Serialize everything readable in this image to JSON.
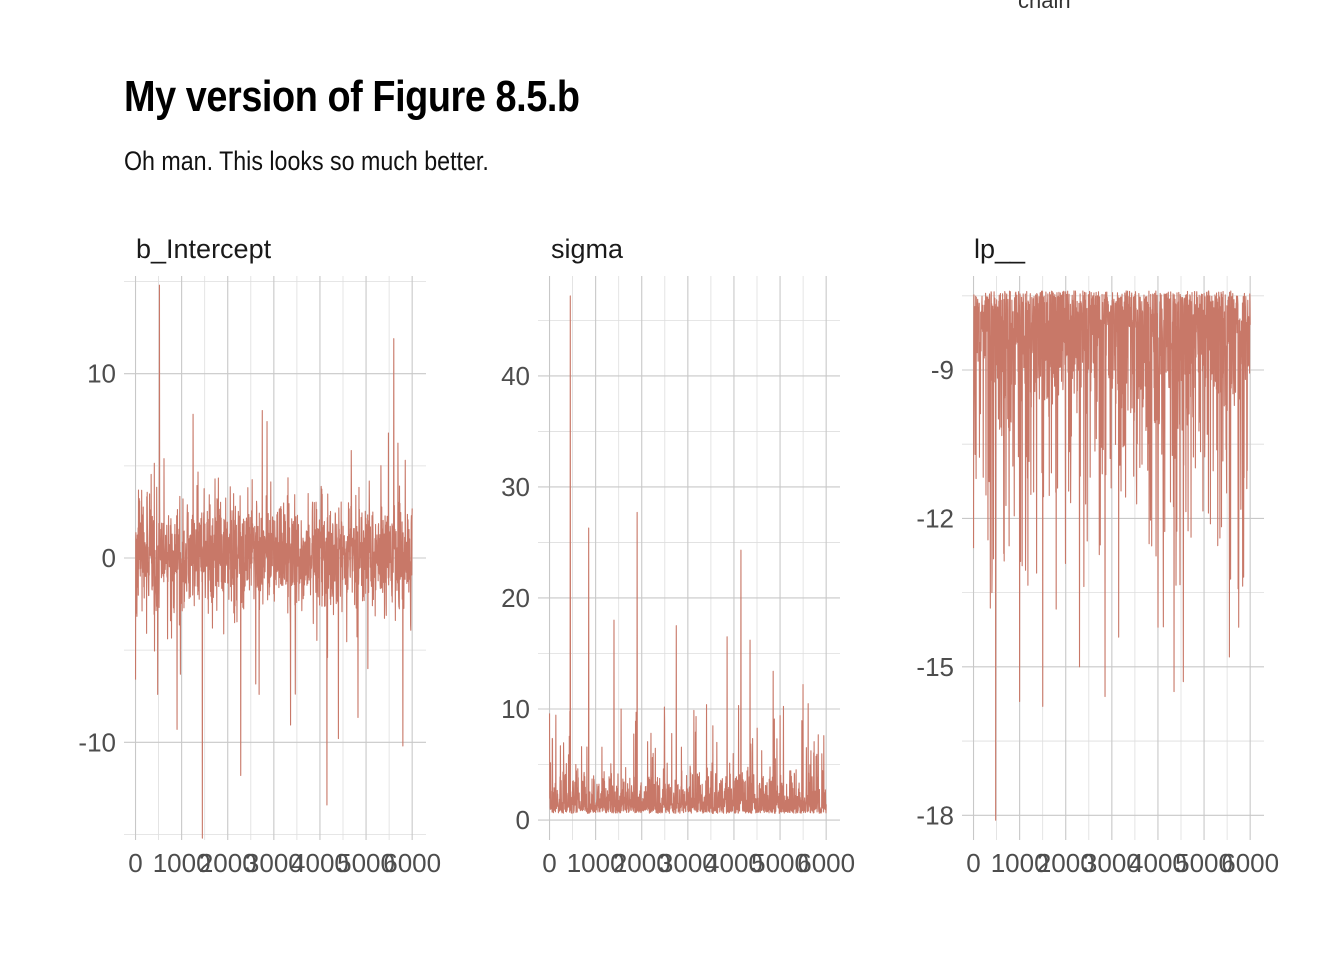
{
  "title": "My version of Figure 8.5.b",
  "subtitle": "Oh man. This looks so much better.",
  "legend_peek": "chain",
  "colors": {
    "trace": "#c87868",
    "grid": "#c8c8c8"
  },
  "chart_data": [
    {
      "type": "line",
      "panel": "b_Intercept",
      "xlabel": "",
      "ylabel": "",
      "xlim": [
        -250,
        6300
      ],
      "ylim": [
        -15.3,
        15.3
      ],
      "xticks": [
        0,
        1000,
        2000,
        3000,
        4000,
        5000,
        6000
      ],
      "yticks": [
        -10,
        0,
        10
      ],
      "ytick_labels": [
        "-10",
        "0",
        "10"
      ],
      "grid": true,
      "n_iterations": 6000,
      "summary": {
        "center": 0.2,
        "spread": 1.5,
        "min": -15.2,
        "max": 14.8
      },
      "spikes": [
        {
          "x": 520,
          "y": 14.8
        },
        {
          "x": 5600,
          "y": 11.9
        },
        {
          "x": 1250,
          "y": 7.8
        },
        {
          "x": 2750,
          "y": 8.0
        },
        {
          "x": 2850,
          "y": 7.4
        },
        {
          "x": 5850,
          "y": 5.3
        },
        {
          "x": 1450,
          "y": -15.2
        },
        {
          "x": 4150,
          "y": -13.4
        },
        {
          "x": 2280,
          "y": -11.8
        },
        {
          "x": 5800,
          "y": -10.2
        },
        {
          "x": 4400,
          "y": -9.8
        },
        {
          "x": 900,
          "y": -9.3
        },
        {
          "x": 480,
          "y": -7.4
        },
        {
          "x": 2680,
          "y": -7.4
        },
        {
          "x": 0,
          "y": -6.6
        }
      ],
      "series": [
        {
          "name": "",
          "values": []
        }
      ]
    },
    {
      "type": "line",
      "panel": "sigma",
      "xlabel": "",
      "ylabel": "",
      "xlim": [
        -250,
        6300
      ],
      "ylim": [
        -1.8,
        49
      ],
      "xticks": [
        0,
        1000,
        2000,
        3000,
        4000,
        5000,
        6000
      ],
      "yticks": [
        0,
        10,
        20,
        30,
        40
      ],
      "ytick_labels": [
        "0",
        "10",
        "20",
        "30",
        "40"
      ],
      "grid": true,
      "n_iterations": 6000,
      "summary": {
        "floor": 0.6,
        "typical": 2.0,
        "min": 0.6,
        "max": 47.2
      },
      "spikes": [
        {
          "x": 450,
          "y": 47.2
        },
        {
          "x": 1900,
          "y": 27.7
        },
        {
          "x": 850,
          "y": 26.3
        },
        {
          "x": 4150,
          "y": 24.3
        },
        {
          "x": 4350,
          "y": 16.2
        },
        {
          "x": 1400,
          "y": 18.0
        },
        {
          "x": 2750,
          "y": 17.5
        },
        {
          "x": 3850,
          "y": 16.5
        },
        {
          "x": 5500,
          "y": 12.2
        },
        {
          "x": 4850,
          "y": 13.4
        },
        {
          "x": 0,
          "y": 9.6
        },
        {
          "x": 5950,
          "y": 7.6
        }
      ],
      "series": [
        {
          "name": "",
          "values": []
        }
      ]
    },
    {
      "type": "line",
      "panel": "lp__",
      "xlabel": "",
      "ylabel": "",
      "xlim": [
        -250,
        6300
      ],
      "ylim": [
        -18.5,
        -7.1
      ],
      "xticks": [
        0,
        1000,
        2000,
        3000,
        4000,
        5000,
        6000
      ],
      "yticks": [
        -18,
        -15,
        -12,
        -9
      ],
      "ytick_labels": [
        "-18",
        "-15",
        "-12",
        "-9"
      ],
      "grid": true,
      "n_iterations": 6000,
      "summary": {
        "max": -7.4,
        "typical_low": -10.0,
        "min": -18.1
      },
      "spikes": [
        {
          "x": 480,
          "y": -18.1
        },
        {
          "x": 1500,
          "y": -15.8
        },
        {
          "x": 1000,
          "y": -15.7
        },
        {
          "x": 2850,
          "y": -15.6
        },
        {
          "x": 4350,
          "y": -15.5
        },
        {
          "x": 4550,
          "y": -15.3
        },
        {
          "x": 2300,
          "y": -15.0
        },
        {
          "x": 5550,
          "y": -14.8
        },
        {
          "x": 5750,
          "y": -14.2
        },
        {
          "x": 3150,
          "y": -14.4
        },
        {
          "x": 4000,
          "y": -14.2
        },
        {
          "x": 400,
          "y": -13.5
        },
        {
          "x": 0,
          "y": -12.6
        }
      ],
      "series": [
        {
          "name": "",
          "values": []
        }
      ]
    }
  ]
}
